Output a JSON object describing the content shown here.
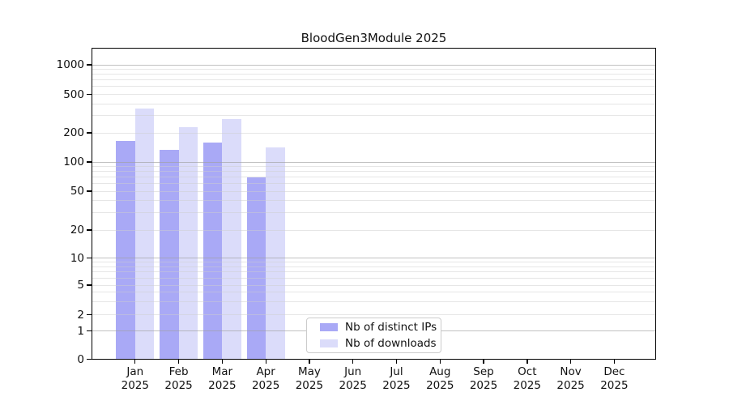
{
  "title": "BloodGen3Module 2025",
  "chart_data": {
    "type": "bar",
    "title": "BloodGen3Module 2025",
    "year": "2025",
    "categories": [
      "Jan",
      "Feb",
      "Mar",
      "Apr",
      "May",
      "Jun",
      "Jul",
      "Aug",
      "Sep",
      "Oct",
      "Nov",
      "Dec"
    ],
    "series": [
      {
        "name": "Nb of distinct IPs",
        "color": "#a9a9f6",
        "values": [
          165,
          133,
          160,
          70,
          null,
          null,
          null,
          null,
          null,
          null,
          null,
          null
        ]
      },
      {
        "name": "Nb of downloads",
        "color": "#dbdcfa",
        "values": [
          355,
          230,
          278,
          142,
          null,
          null,
          null,
          null,
          null,
          null,
          null,
          null
        ]
      }
    ],
    "yticks": [
      0,
      1,
      2,
      5,
      10,
      20,
      50,
      100,
      200,
      500,
      1000
    ],
    "ylabel": "",
    "xlabel": "",
    "yscale": "symlog",
    "ylim": [
      0,
      1470
    ],
    "grid": "major and log-minor horizontal gridlines, drawn over bars",
    "legend_position": "bottom-center inside plot"
  },
  "legend": {
    "items": [
      {
        "label": "Nb of distinct IPs",
        "color": "#a9a9f6"
      },
      {
        "label": "Nb of downloads",
        "color": "#dbdcfa"
      }
    ]
  },
  "colors": {
    "bar_dark": "#a9a9f6",
    "bar_light": "#dbdcfa",
    "grid_major": "rgba(160,160,160,0.65)",
    "grid_minor": "rgba(205,205,205,0.5)",
    "axis": "#000000",
    "legend_border": "#cccccc",
    "text": "#111111"
  }
}
